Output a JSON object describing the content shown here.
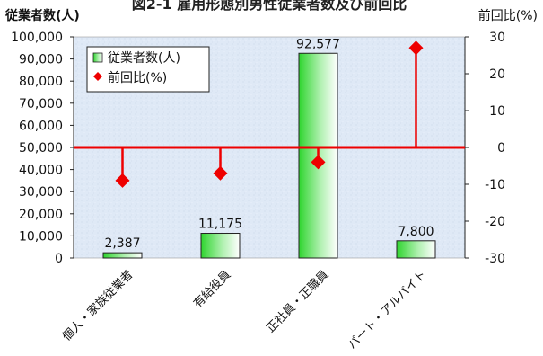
{
  "chart_data": {
    "type": "bar",
    "title": "図2-1 雇用形態別男性従業者数及び前回比",
    "categories": [
      "個人・家族従業者",
      "有給役員",
      "正社員・正職員",
      "パート・アルバイト"
    ],
    "series": [
      {
        "name": "従業者数(人)",
        "type": "bar",
        "axis": "left",
        "values": [
          2387,
          11175,
          92577,
          7800
        ],
        "data_labels": [
          "2,387",
          "11,175",
          "92,577",
          "7,800"
        ]
      },
      {
        "name": "前回比(%)",
        "type": "stem",
        "axis": "right",
        "values": [
          -9,
          -7,
          -4,
          27
        ]
      }
    ],
    "ylabel_left": "従業者数(人)",
    "ylabel_right": "前回比(%)",
    "ylim_left": [
      0,
      100000
    ],
    "ylim_right": [
      -30,
      30
    ],
    "yticks_left": [
      "0",
      "10,000",
      "20,000",
      "30,000",
      "40,000",
      "50,000",
      "60,000",
      "70,000",
      "80,000",
      "90,000",
      "100,000"
    ],
    "yticks_right": [
      "-30",
      "-20",
      "-10",
      "0",
      "10",
      "20",
      "30"
    ],
    "grid": false,
    "legend_position": "top-left",
    "colors": {
      "bar_fill": "#33dd33",
      "bar_edge": "#222222",
      "stem": "#ee0000",
      "plot_bg": "#dfe9f6"
    }
  }
}
